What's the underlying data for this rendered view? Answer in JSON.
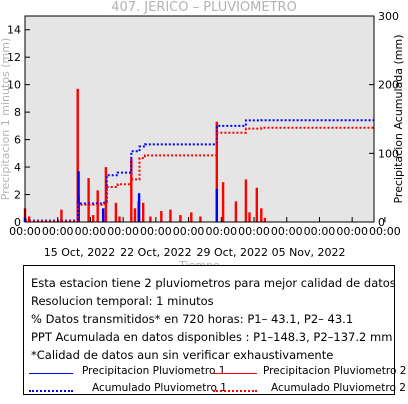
{
  "chart_data": {
    "type": "bar+line",
    "title": "407. JERICO – PLUVIOMETRO",
    "xlabel": "Tiempo",
    "ylabel_left": "Precipitacion 1 minutos (mm)",
    "ylabel_right": "Precipitacion Acumulada (mm)",
    "ylim_left": [
      0,
      15
    ],
    "ylim_right": [
      0,
      300
    ],
    "yticks_left": [
      0,
      2,
      4,
      6,
      8,
      10,
      12,
      14
    ],
    "yticks_right": [
      0,
      100,
      200,
      300
    ],
    "x_range_days": [
      "2022-10-10",
      "2022-11-11"
    ],
    "time_tick_labels": [
      "00:00",
      "00:00",
      "00:00",
      "00:00",
      "00:00",
      "00:00",
      "00:00",
      "00:00",
      "00:00",
      "00:00",
      "00:00",
      "00:00"
    ],
    "date_tick_labels": [
      "15 Oct, 2022",
      "22 Oct, 2022",
      "29 Oct, 2022",
      "05 Nov, 2022"
    ],
    "background_color": "#e5e5e5",
    "series": [
      {
        "name": "Precipitacion Pluviometro 1",
        "style": "bars",
        "color": "#0000ff",
        "x": [
          "2022-10-10 00:00",
          "2022-10-14 22:00",
          "2022-10-17 04:00",
          "2022-10-20 11:00",
          "2022-10-27 14:00"
        ],
        "values": [
          0.3,
          3.7,
          1.0,
          2.1,
          2.4
        ]
      },
      {
        "name": "Precipitacion Pluviometro 2",
        "style": "bars",
        "color": "#ff0000",
        "x": [
          "2022-10-10 00:00",
          "2022-10-10 09:00",
          "2022-10-13 08:00",
          "2022-10-14 20:00",
          "2022-10-14 22:00",
          "2022-10-15 20:00",
          "2022-10-16 06:00",
          "2022-10-16 16:00",
          "2022-10-17 04:00",
          "2022-10-17 10:00",
          "2022-10-18 08:00",
          "2022-10-18 16:00",
          "2022-10-19 18:00",
          "2022-10-20 02:00",
          "2022-10-20 10:00",
          "2022-10-20 20:00",
          "2022-10-21 12:00",
          "2022-10-22 12:00",
          "2022-10-23 08:00",
          "2022-10-24 06:00",
          "2022-10-25 06:00",
          "2022-10-26 02:00",
          "2022-10-27 14:00",
          "2022-10-28 04:00",
          "2022-10-29 08:00",
          "2022-10-30 06:00",
          "2022-10-30 14:00",
          "2022-10-31 06:00",
          "2022-10-31 16:00",
          "2022-11-01 00:00"
        ],
        "values": [
          1.0,
          0.4,
          0.9,
          9.7,
          2.0,
          3.2,
          0.5,
          2.3,
          0.4,
          4.0,
          1.4,
          0.4,
          4.6,
          1.0,
          1.5,
          1.4,
          0.4,
          0.8,
          0.9,
          0.5,
          0.7,
          0.4,
          7.3,
          2.9,
          1.5,
          3.1,
          0.7,
          2.5,
          1.0,
          0.3
        ]
      },
      {
        "name": "Acumulado Pluviometro 1",
        "style": "dotted-step",
        "color": "#0000ff",
        "x": [
          "2022-10-10",
          "2022-10-14 20:00",
          "2022-10-17 04:00",
          "2022-10-17 12:00",
          "2022-10-18 12:00",
          "2022-10-19 18:00",
          "2022-10-20 12:00",
          "2022-10-21 00:00",
          "2022-10-27 14:00",
          "2022-10-30 06:00",
          "2022-10-31 16:00",
          "2022-11-11"
        ],
        "values": [
          2,
          27,
          28,
          68,
          72,
          103,
          110,
          113,
          140,
          148,
          148.3,
          148.3
        ]
      },
      {
        "name": "Acumulado Pluviometro 2",
        "style": "dotted-step",
        "color": "#ff0000",
        "x": [
          "2022-10-10",
          "2022-10-14 20:00",
          "2022-10-17 04:00",
          "2022-10-17 12:00",
          "2022-10-18 12:00",
          "2022-10-19 18:00",
          "2022-10-20 12:00",
          "2022-10-21 00:00",
          "2022-10-27 14:00",
          "2022-10-30 06:00",
          "2022-10-31 16:00",
          "2022-11-11"
        ],
        "values": [
          1,
          25,
          26,
          51,
          55,
          62,
          93,
          97,
          130,
          136,
          137.2,
          137.2
        ]
      }
    ],
    "grid": false,
    "legend_placement": "bottom"
  },
  "info": {
    "line1": "Esta estacion tiene 2 pluviometros para mejor calidad de datos",
    "line2": "Resolucion temporal: 1 minutos",
    "line3": "% Datos transmitidos* en 720 horas: P1– 43.1, P2– 43.1",
    "line4": "PPT Acumulada en datos disponibles : P1–148.3, P2–137.2 mm",
    "line5": "*Calidad de datos aun sin verificar exhaustivamente"
  },
  "legend": {
    "p1_rain": "Precipitacion Pluviometro 1",
    "p2_rain": "Precipitacion Pluviometro 2",
    "p1_acc": "Acumulado Pluviometro 1",
    "p2_acc": "Acumulado Pluviometro 2"
  },
  "colors": {
    "blue": "#0000ff",
    "red": "#ff0000",
    "plot_bg": "#e5e5e5",
    "muted_text": "#b3b3b3"
  }
}
